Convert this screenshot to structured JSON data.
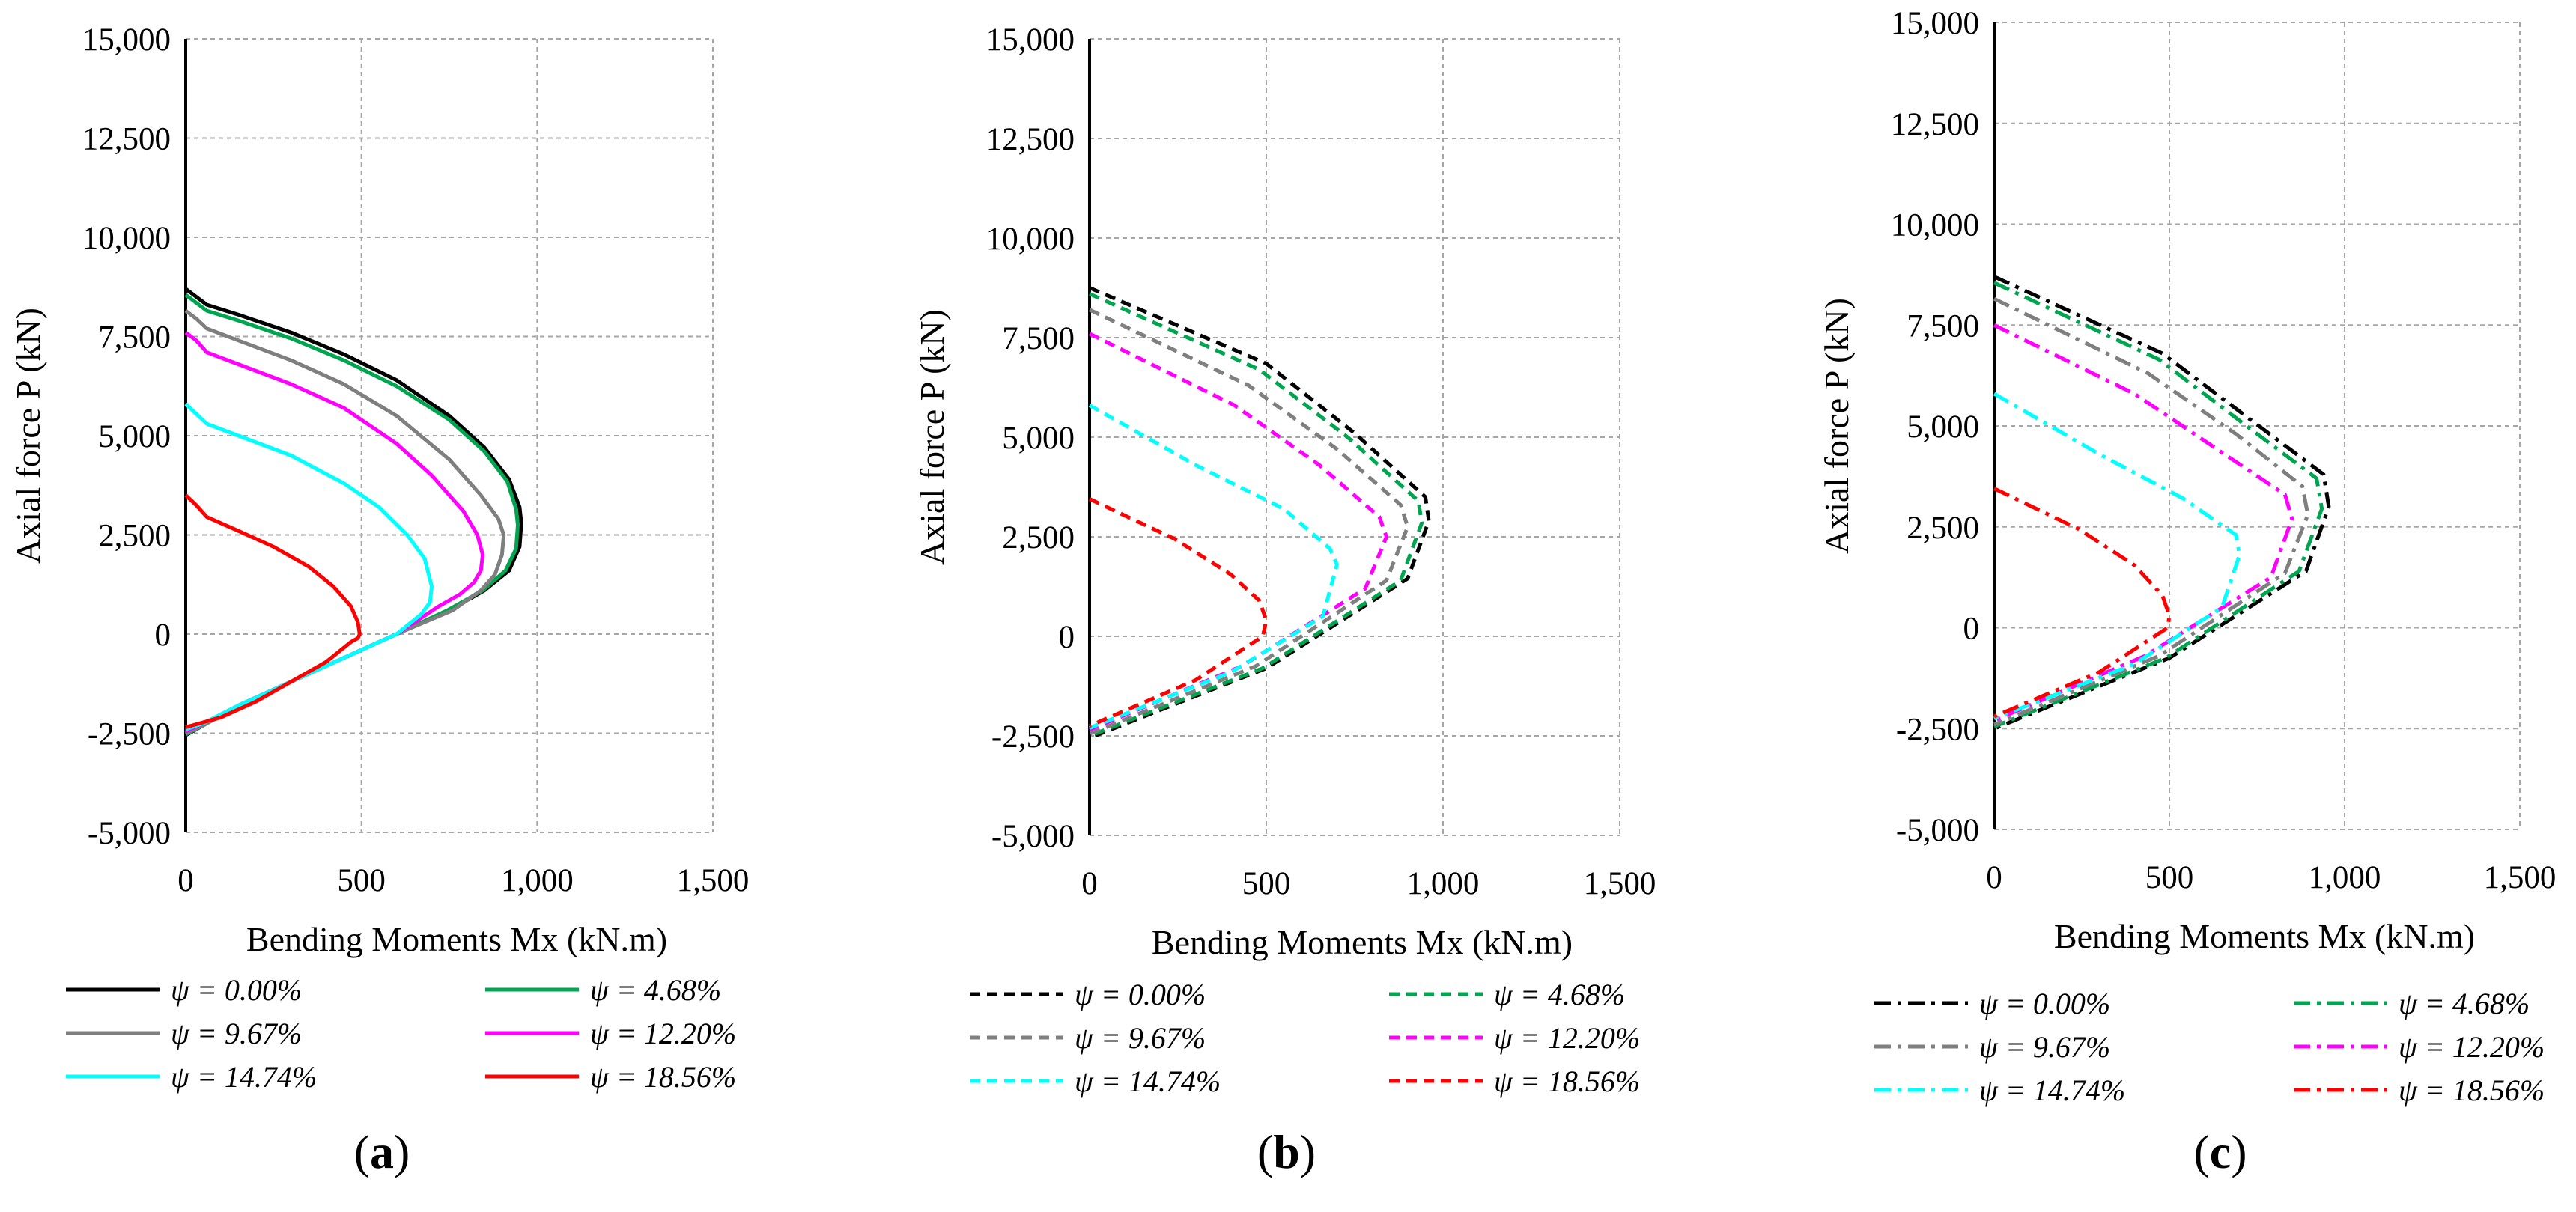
{
  "colors": {
    "psi_0": "#000000",
    "psi_4_68": "#00a550",
    "psi_9_67": "#7f7f7f",
    "psi_12_20": "#ff00ff",
    "psi_14_74": "#00ffff",
    "psi_18_56": "#ff0000"
  },
  "chart_data": [
    {
      "panel": "a",
      "panel_open": "(",
      "panel_letter": "a",
      "panel_close": ")",
      "type": "line",
      "line_style": "solid",
      "xlabel": "Bending Moments Mx (kN.m)",
      "ylabel": "Axial force P (kN)",
      "xlim": [
        0,
        1500
      ],
      "ylim": [
        -5000,
        15000
      ],
      "xticks": [
        0,
        500,
        1000,
        1500
      ],
      "xtick_labels": [
        "0",
        "500",
        "1,000",
        "1,500"
      ],
      "yticks": [
        -5000,
        -2500,
        0,
        2500,
        5000,
        7500,
        10000,
        12500,
        15000
      ],
      "ytick_labels": [
        "-5,000",
        "-2,500",
        "0",
        "2,500",
        "5,000",
        "7,500",
        "10,000",
        "12,500",
        "15,000"
      ],
      "grid": true,
      "legend_position": "bottom",
      "series": [
        {
          "name": "ψ = 0.00%",
          "color_key": "psi_0",
          "x": [
            0,
            30,
            60,
            150,
            300,
            450,
            600,
            750,
            850,
            920,
            950,
            955,
            950,
            920,
            850,
            750,
            600,
            450,
            300,
            150,
            50,
            0
          ],
          "y": [
            8700,
            8500,
            8300,
            8050,
            7600,
            7050,
            6400,
            5500,
            4700,
            3900,
            3200,
            2800,
            2200,
            1600,
            1100,
            600,
            0,
            -600,
            -1200,
            -1800,
            -2300,
            -2550
          ]
        },
        {
          "name": "ψ = 4.68%",
          "color_key": "psi_4_68",
          "x": [
            0,
            30,
            60,
            150,
            300,
            450,
            600,
            750,
            850,
            915,
            940,
            945,
            940,
            910,
            845,
            745,
            600,
            450,
            300,
            150,
            50,
            0
          ],
          "y": [
            8550,
            8350,
            8150,
            7900,
            7450,
            6900,
            6250,
            5400,
            4600,
            3850,
            3150,
            2750,
            2150,
            1600,
            1100,
            600,
            0,
            -600,
            -1200,
            -1800,
            -2300,
            -2530
          ]
        },
        {
          "name": "ψ = 9.67%",
          "color_key": "psi_9_67",
          "x": [
            0,
            30,
            60,
            150,
            300,
            450,
            600,
            750,
            840,
            890,
            905,
            900,
            880,
            840,
            760,
            600,
            450,
            300,
            150,
            50,
            0
          ],
          "y": [
            8150,
            7950,
            7700,
            7400,
            6900,
            6300,
            5500,
            4400,
            3500,
            2900,
            2500,
            2000,
            1500,
            1100,
            600,
            0,
            -600,
            -1200,
            -1800,
            -2300,
            -2500
          ]
        },
        {
          "name": "ψ = 12.20%",
          "color_key": "psi_12_20",
          "x": [
            0,
            30,
            60,
            150,
            300,
            450,
            600,
            700,
            790,
            830,
            845,
            840,
            820,
            780,
            720,
            600,
            450,
            300,
            150,
            50,
            0
          ],
          "y": [
            7600,
            7400,
            7100,
            6800,
            6300,
            5700,
            4800,
            4000,
            3100,
            2500,
            2000,
            1600,
            1300,
            1000,
            700,
            0,
            -600,
            -1200,
            -1800,
            -2250,
            -2450
          ]
        },
        {
          "name": "ψ = 14.74%",
          "color_key": "psi_14_74",
          "x": [
            0,
            30,
            60,
            150,
            300,
            450,
            550,
            630,
            680,
            700,
            695,
            670,
            600,
            450,
            300,
            150,
            50,
            0
          ],
          "y": [
            5800,
            5550,
            5300,
            5000,
            4500,
            3800,
            3200,
            2500,
            1900,
            1200,
            800,
            500,
            0,
            -600,
            -1200,
            -1800,
            -2250,
            -2400
          ]
        },
        {
          "name": "ψ = 18.56%",
          "color_key": "psi_18_56",
          "x": [
            0,
            30,
            60,
            150,
            250,
            350,
            420,
            470,
            490,
            495,
            490,
            470,
            400,
            300,
            200,
            100,
            0
          ],
          "y": [
            3500,
            3250,
            2950,
            2600,
            2200,
            1700,
            1200,
            700,
            300,
            0,
            -100,
            -200,
            -700,
            -1200,
            -1700,
            -2100,
            -2350
          ]
        }
      ]
    },
    {
      "panel": "b",
      "panel_open": "(",
      "panel_letter": "b",
      "panel_close": ")",
      "type": "line",
      "line_style": "dashed",
      "xlabel": "Bending Moments Mx (kN.m)",
      "ylabel": "Axial force P (kN)",
      "xlim": [
        0,
        1500
      ],
      "ylim": [
        -5000,
        15000
      ],
      "xticks": [
        0,
        500,
        1000,
        1500
      ],
      "xtick_labels": [
        "0",
        "500",
        "1,000",
        "1,500"
      ],
      "yticks": [
        -5000,
        -2500,
        0,
        2500,
        5000,
        7500,
        10000,
        12500,
        15000
      ],
      "ytick_labels": [
        "-5,000",
        "-2,500",
        "0",
        "2,500",
        "5,000",
        "7,500",
        "10,000",
        "12,500",
        "15,000"
      ],
      "grid": true,
      "legend_position": "bottom",
      "series": [
        {
          "name": "ψ = 0.00%",
          "color_key": "psi_0",
          "x": [
            0,
            500,
            750,
            950,
            960,
            900,
            500,
            0
          ],
          "y": [
            8750,
            6850,
            5100,
            3500,
            2900,
            1450,
            -800,
            -2550
          ]
        },
        {
          "name": "ψ = 4.68%",
          "color_key": "psi_4_68",
          "x": [
            0,
            480,
            730,
            930,
            940,
            880,
            490,
            0
          ],
          "y": [
            8600,
            6700,
            5000,
            3400,
            2850,
            1400,
            -800,
            -2500
          ]
        },
        {
          "name": "ψ = 9.67%",
          "color_key": "psi_9_67",
          "x": [
            0,
            450,
            700,
            880,
            900,
            840,
            470,
            0
          ],
          "y": [
            8200,
            6300,
            4700,
            3300,
            2750,
            1400,
            -750,
            -2450
          ]
        },
        {
          "name": "ψ = 12.20%",
          "color_key": "psi_12_20",
          "x": [
            0,
            410,
            650,
            820,
            840,
            780,
            430,
            0
          ],
          "y": [
            7600,
            5800,
            4300,
            3000,
            2500,
            1200,
            -750,
            -2350
          ]
        },
        {
          "name": "ψ = 14.74%",
          "color_key": "psi_14_74",
          "x": [
            0,
            300,
            550,
            680,
            700,
            660,
            400,
            0
          ],
          "y": [
            5800,
            4300,
            3200,
            2200,
            1800,
            500,
            -900,
            -2300
          ]
        },
        {
          "name": "ψ = 18.56%",
          "color_key": "psi_18_56",
          "x": [
            0,
            240,
            400,
            480,
            500,
            490,
            300,
            0
          ],
          "y": [
            3450,
            2450,
            1550,
            900,
            400,
            0,
            -1100,
            -2250
          ]
        }
      ]
    },
    {
      "panel": "c",
      "panel_open": "(",
      "panel_letter": "c",
      "panel_close": ")",
      "type": "line",
      "line_style": "dash-dot",
      "xlabel": "Bending Moments Mx (kN.m)",
      "ylabel": "Axial force P (kN)",
      "xlim": [
        0,
        1500
      ],
      "ylim": [
        -5000,
        15000
      ],
      "xticks": [
        0,
        500,
        1000,
        1500
      ],
      "xtick_labels": [
        "0",
        "500",
        "1,000",
        "1,500"
      ],
      "yticks": [
        -5000,
        -2500,
        0,
        2500,
        5000,
        7500,
        10000,
        12500,
        15000
      ],
      "ytick_labels": [
        "-5,000",
        "-2,500",
        "0",
        "2,500",
        "5,000",
        "7,500",
        "10,000",
        "12,500",
        "15,000"
      ],
      "grid": true,
      "legend_position": "bottom",
      "series": [
        {
          "name": "ψ = 0.00%",
          "color_key": "psi_0",
          "x": [
            0,
            480,
            740,
            940,
            955,
            890,
            500,
            0
          ],
          "y": [
            8700,
            6800,
            5100,
            3800,
            3000,
            1400,
            -750,
            -2500
          ]
        },
        {
          "name": "ψ = 4.68%",
          "color_key": "psi_4_68",
          "x": [
            0,
            470,
            720,
            920,
            935,
            870,
            490,
            0
          ],
          "y": [
            8550,
            6650,
            5000,
            3700,
            2950,
            1400,
            -750,
            -2450
          ]
        },
        {
          "name": "ψ = 9.67%",
          "color_key": "psi_9_67",
          "x": [
            0,
            440,
            690,
            880,
            895,
            830,
            470,
            0
          ],
          "y": [
            8150,
            6300,
            4800,
            3500,
            2800,
            1350,
            -700,
            -2400
          ]
        },
        {
          "name": "ψ = 12.20%",
          "color_key": "psi_12_20",
          "x": [
            0,
            400,
            640,
            830,
            850,
            790,
            430,
            0
          ],
          "y": [
            7500,
            5800,
            4400,
            3300,
            2700,
            1250,
            -700,
            -2300
          ]
        },
        {
          "name": "ψ = 14.74%",
          "color_key": "psi_14_74",
          "x": [
            0,
            300,
            540,
            690,
            700,
            650,
            400,
            0
          ],
          "y": [
            5800,
            4300,
            3200,
            2300,
            1800,
            500,
            -900,
            -2250
          ]
        },
        {
          "name": "ψ = 18.56%",
          "color_key": "psi_18_56",
          "x": [
            0,
            240,
            400,
            480,
            500,
            495,
            300,
            0
          ],
          "y": [
            3450,
            2450,
            1550,
            800,
            300,
            0,
            -1100,
            -2200
          ]
        }
      ]
    }
  ]
}
